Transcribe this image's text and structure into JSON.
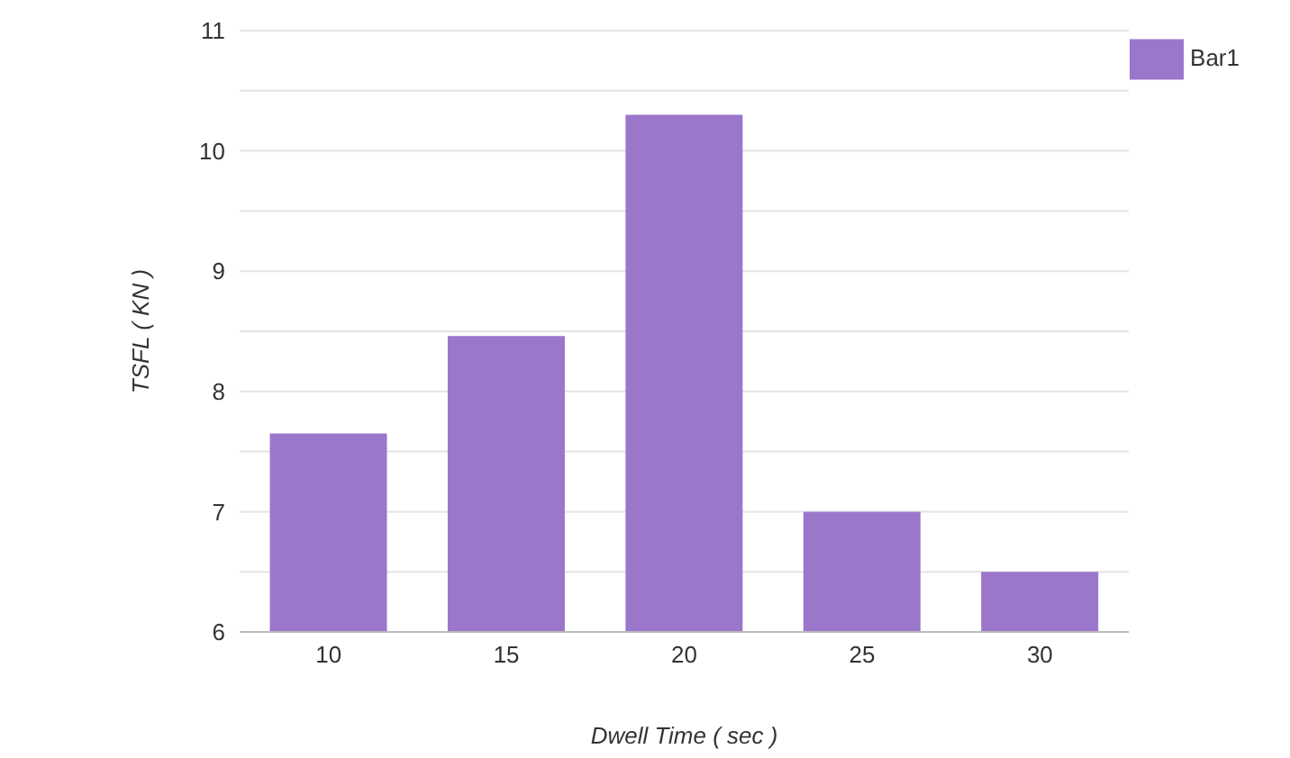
{
  "chart_data": {
    "type": "bar",
    "xlabel": "Dwell Time ( sec )",
    "ylabel": "TSFL ( KN )",
    "categories": [
      "10",
      "15",
      "20",
      "25",
      "30"
    ],
    "series": [
      {
        "name": "Bar1",
        "color": "#9b77cb",
        "values": [
          7.65,
          8.46,
          10.3,
          7.0,
          6.5
        ]
      }
    ],
    "ylim": [
      6,
      11
    ],
    "yticks": [
      6,
      {
        "value": 6.5,
        "label": null
      },
      7,
      {
        "value": 7.5,
        "label": null
      },
      8,
      {
        "value": 8.5,
        "label": null
      },
      9,
      {
        "value": 9.5,
        "label": null
      },
      10,
      {
        "value": 10.5,
        "label": null
      },
      11
    ],
    "grid": "y",
    "legend": "top right"
  }
}
